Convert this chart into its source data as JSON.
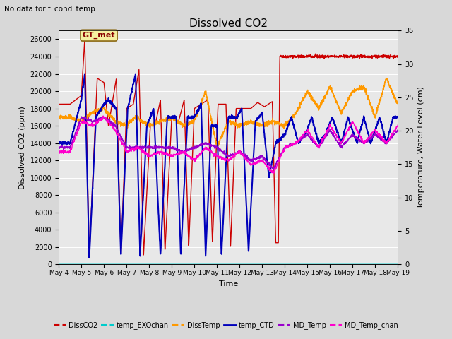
{
  "title": "Dissolved CO2",
  "top_left_text": "No data for f_cond_temp",
  "annotation_text": "GT_met",
  "xlabel": "Time",
  "ylabel_left": "Dissolved CO2 (ppm)",
  "ylabel_right": "Temperature, Water Level (cm)",
  "ylim_left": [
    0,
    27000
  ],
  "ylim_right": [
    0,
    35
  ],
  "yticks_left": [
    0,
    2000,
    4000,
    6000,
    8000,
    10000,
    12000,
    14000,
    16000,
    18000,
    20000,
    22000,
    24000,
    26000
  ],
  "yticks_right": [
    0,
    5,
    10,
    15,
    20,
    25,
    30,
    35
  ],
  "fig_bg_color": "#d8d8d8",
  "plot_bg_color": "#e8e8e8",
  "series": {
    "DissCO2": {
      "color": "#cc0000",
      "lw": 1.0,
      "label": "DissCO2",
      "ls": "--"
    },
    "temp_EXOchan": {
      "color": "#00cccc",
      "lw": 1.2,
      "label": "temp_EXOchan",
      "ls": "--"
    },
    "DissTemp": {
      "color": "#ff9900",
      "lw": 1.2,
      "label": "DissTemp",
      "ls": "--"
    },
    "temp_CTD": {
      "color": "#0000bb",
      "lw": 1.5,
      "label": "temp_CTD",
      "ls": "-"
    },
    "MD_Temp": {
      "color": "#9900cc",
      "lw": 1.0,
      "label": "MD_Temp",
      "ls": "--"
    },
    "MD_Temp_chan": {
      "color": "#ff00cc",
      "lw": 1.0,
      "label": "MD_Temp_chan",
      "ls": "--"
    }
  }
}
